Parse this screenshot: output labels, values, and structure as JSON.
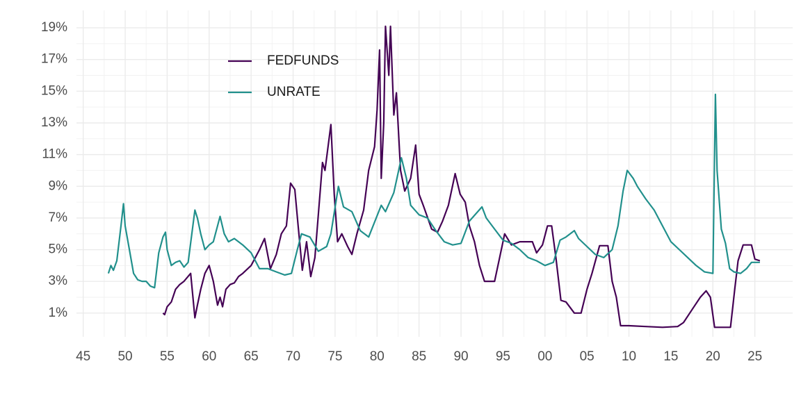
{
  "chart_data": {
    "type": "line",
    "xlim": [
      1944.2,
      2029.5
    ],
    "xticks": [
      {
        "value": 1945,
        "label": "45"
      },
      {
        "value": 1950,
        "label": "50"
      },
      {
        "value": 1955,
        "label": "55"
      },
      {
        "value": 1960,
        "label": "60"
      },
      {
        "value": 1965,
        "label": "65"
      },
      {
        "value": 1970,
        "label": "70"
      },
      {
        "value": 1975,
        "label": "75"
      },
      {
        "value": 1980,
        "label": "80"
      },
      {
        "value": 1985,
        "label": "85"
      },
      {
        "value": 1990,
        "label": "90"
      },
      {
        "value": 1995,
        "label": "95"
      },
      {
        "value": 2000,
        "label": "00"
      },
      {
        "value": 2005,
        "label": "05"
      },
      {
        "value": 2010,
        "label": "10"
      },
      {
        "value": 2015,
        "label": "15"
      },
      {
        "value": 2020,
        "label": "20"
      },
      {
        "value": 2025,
        "label": "25"
      }
    ],
    "ylim": [
      -0.5,
      20.1
    ],
    "yticks": [
      {
        "value": 1,
        "label": "1%"
      },
      {
        "value": 3,
        "label": "3%"
      },
      {
        "value": 5,
        "label": "5%"
      },
      {
        "value": 7,
        "label": "7%"
      },
      {
        "value": 9,
        "label": "9%"
      },
      {
        "value": 11,
        "label": "11%"
      },
      {
        "value": 13,
        "label": "13%"
      },
      {
        "value": 15,
        "label": "15%"
      },
      {
        "value": 17,
        "label": "17%"
      },
      {
        "value": 19,
        "label": "19%"
      }
    ],
    "grid": true,
    "legend": "top-left",
    "series": [
      {
        "name": "FEDFUNDS",
        "color": "#440154",
        "x": [
          1954.5,
          1954.7,
          1955,
          1955.5,
          1956,
          1956.5,
          1957,
          1957.8,
          1958.3,
          1958.6,
          1959,
          1959.5,
          1960,
          1960.5,
          1961,
          1961.3,
          1961.6,
          1962,
          1962.5,
          1963,
          1963.5,
          1964,
          1965,
          1966,
          1966.6,
          1967.3,
          1968,
          1968.6,
          1969.2,
          1969.7,
          1970.2,
          1970.6,
          1971.1,
          1971.6,
          1972.1,
          1972.6,
          1973.5,
          1973.8,
          1974.5,
          1974.9,
          1975.3,
          1975.8,
          1976.5,
          1977,
          1977.6,
          1978.4,
          1979,
          1979.7,
          1980.0,
          1980.3,
          1980.5,
          1980.8,
          1981.0,
          1981.4,
          1981.6,
          1982.0,
          1982.3,
          1982.8,
          1983.3,
          1984.0,
          1984.6,
          1985,
          1985.5,
          1986.5,
          1987.2,
          1987.8,
          1988.5,
          1989.3,
          1989.9,
          1990.5,
          1991,
          1991.6,
          1992.2,
          1992.8,
          1993.5,
          1994,
          1994.6,
          1995.2,
          1996,
          1997,
          1998.5,
          1999,
          1999.7,
          2000.3,
          2000.8,
          2001.3,
          2001.9,
          2002.5,
          2003.5,
          2004.3,
          2005,
          2005.6,
          2006.5,
          2007.5,
          2008,
          2008.5,
          2009,
          2010,
          2012,
          2014,
          2015.8,
          2016.5,
          2017.5,
          2018.5,
          2019.2,
          2019.7,
          2020.2,
          2021.5,
          2022.1,
          2022.6,
          2023.0,
          2023.6,
          2024.6,
          2025.0,
          2025.6
        ],
        "values": [
          1.0,
          0.9,
          1.4,
          1.7,
          2.5,
          2.8,
          3.0,
          3.5,
          0.7,
          1.5,
          2.5,
          3.5,
          4.0,
          3.0,
          1.5,
          2.0,
          1.4,
          2.5,
          2.8,
          2.9,
          3.3,
          3.5,
          4.0,
          5.0,
          5.7,
          3.8,
          4.7,
          6.0,
          6.5,
          9.2,
          8.8,
          6.5,
          3.7,
          5.5,
          3.3,
          4.5,
          10.5,
          10.0,
          12.9,
          8.5,
          5.5,
          6.0,
          5.2,
          4.7,
          6.0,
          7.5,
          10.0,
          11.5,
          13.8,
          17.6,
          9.5,
          13.0,
          19.1,
          16.0,
          19.1,
          13.5,
          14.9,
          10.0,
          8.7,
          9.5,
          11.6,
          8.5,
          7.8,
          6.3,
          6.1,
          6.8,
          7.8,
          9.8,
          8.5,
          8.0,
          6.5,
          5.5,
          4.0,
          3.0,
          3.0,
          3.0,
          4.5,
          6.0,
          5.3,
          5.5,
          5.5,
          4.8,
          5.3,
          6.5,
          6.5,
          4.5,
          1.8,
          1.7,
          1.0,
          1.0,
          2.5,
          3.5,
          5.25,
          5.25,
          3.0,
          2.0,
          0.2,
          0.2,
          0.15,
          0.1,
          0.15,
          0.4,
          1.2,
          2.0,
          2.4,
          2.0,
          0.1,
          0.1,
          0.1,
          2.5,
          4.3,
          5.3,
          5.3,
          4.4,
          4.3
        ]
      },
      {
        "name": "UNRATE",
        "color": "#21908c",
        "x": [
          1948.0,
          1948.3,
          1948.6,
          1949,
          1949.5,
          1949.8,
          1950,
          1950.5,
          1951,
          1951.5,
          1952,
          1952.5,
          1953,
          1953.5,
          1954,
          1954.5,
          1954.8,
          1955,
          1955.5,
          1956,
          1956.5,
          1957,
          1957.5,
          1958.3,
          1958.6,
          1959,
          1959.5,
          1960,
          1960.5,
          1961.3,
          1961.8,
          1962.3,
          1963,
          1964,
          1965,
          1966,
          1967,
          1968,
          1969,
          1969.8,
          1970.5,
          1971,
          1972,
          1973,
          1974,
          1974.5,
          1975.4,
          1976,
          1977,
          1978,
          1979,
          1980.5,
          1981,
          1982,
          1982.9,
          1983.5,
          1984,
          1985,
          1986,
          1987,
          1988,
          1989,
          1990,
          1991,
          1992.5,
          1993,
          1994,
          1995,
          1996,
          1997,
          1998,
          1999,
          2000,
          2001,
          2001.8,
          2002.5,
          2003.5,
          2004,
          2005,
          2006,
          2007,
          2008,
          2008.7,
          2009.3,
          2009.8,
          2010.5,
          2011,
          2012,
          2013,
          2014,
          2015,
          2016,
          2017,
          2018,
          2019,
          2020.0,
          2020.3,
          2020.5,
          2021,
          2021.5,
          2022,
          2022.5,
          2023.3,
          2024,
          2024.6,
          2025.6
        ],
        "values": [
          3.5,
          4.0,
          3.7,
          4.3,
          6.5,
          7.9,
          6.5,
          5.0,
          3.5,
          3.1,
          3.0,
          3.0,
          2.7,
          2.6,
          4.8,
          5.8,
          6.1,
          5.0,
          4.0,
          4.2,
          4.3,
          3.9,
          4.2,
          7.5,
          7.0,
          6.0,
          5.0,
          5.3,
          5.5,
          7.1,
          6.0,
          5.5,
          5.7,
          5.3,
          4.8,
          3.8,
          3.8,
          3.6,
          3.4,
          3.5,
          5.0,
          6.0,
          5.8,
          4.9,
          5.2,
          6.0,
          9.0,
          7.7,
          7.4,
          6.2,
          5.8,
          7.8,
          7.4,
          8.6,
          10.8,
          9.5,
          7.8,
          7.2,
          7.0,
          6.2,
          5.5,
          5.3,
          5.4,
          6.8,
          7.7,
          7.0,
          6.3,
          5.6,
          5.4,
          5.0,
          4.5,
          4.3,
          4.0,
          4.2,
          5.6,
          5.8,
          6.2,
          5.7,
          5.2,
          4.7,
          4.5,
          5.0,
          6.5,
          8.7,
          10.0,
          9.5,
          9.0,
          8.2,
          7.5,
          6.5,
          5.5,
          5.0,
          4.5,
          4.0,
          3.6,
          3.5,
          14.8,
          10.0,
          6.3,
          5.4,
          3.8,
          3.6,
          3.5,
          3.8,
          4.2,
          4.2
        ]
      }
    ]
  }
}
